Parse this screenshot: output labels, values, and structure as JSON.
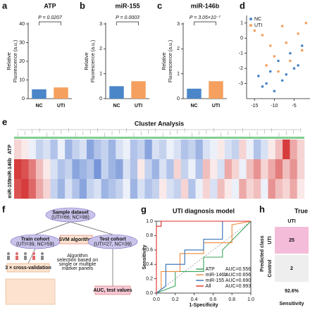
{
  "chart_data": [
    {
      "type": "bar",
      "panel": "a",
      "title": "ATP",
      "ylabel": [
        "Relative",
        "Fluorescence (a.u.)"
      ],
      "pvalue": "P = 0.0207",
      "categories": [
        "NC",
        "UTI"
      ],
      "values": [
        5,
        6
      ],
      "colors": [
        "#4a86c8",
        "#f5a05f"
      ],
      "ylim": [
        0,
        40
      ],
      "yticks": [
        0,
        10,
        20,
        30,
        40
      ]
    },
    {
      "type": "bar",
      "panel": "b",
      "title": "miR-155",
      "ylabel": [
        "Relative",
        "Fluorescence (a.u.)"
      ],
      "pvalue": "P = 0.0003",
      "categories": [
        "NC",
        "UTI"
      ],
      "values": [
        0.5,
        0.7
      ],
      "colors": [
        "#4a86c8",
        "#f5a05f"
      ],
      "ylim": [
        0,
        3
      ],
      "yticks": [
        0,
        1,
        2,
        3
      ]
    },
    {
      "type": "bar",
      "panel": "c",
      "title": "miR-146b",
      "ylabel": [
        "Relative",
        "Fluorescence (a.u.)"
      ],
      "pvalue": "P = 3.05×10⁻⁷",
      "categories": [
        "NC",
        "UTI"
      ],
      "values": [
        0.4,
        0.7
      ],
      "colors": [
        "#4a86c8",
        "#f5a05f"
      ],
      "ylim": [
        0,
        3
      ],
      "yticks": [
        0,
        1,
        2,
        3
      ]
    },
    {
      "type": "scatter",
      "panel": "d",
      "series": [
        {
          "name": "NC",
          "color": "#4a86c8",
          "x": [
            -14,
            -12,
            -11,
            -9,
            -8,
            -6,
            -5,
            -4,
            -3,
            -13,
            -7,
            -10
          ],
          "values": [
            -2.5,
            -3,
            -2.2,
            -1.5,
            -2.8,
            -1,
            -2,
            -1.8,
            -0.5,
            -3.2,
            -2.4,
            -3.5
          ]
        },
        {
          "name": "UTI",
          "color": "#f5a05f",
          "x": [
            -15,
            -13,
            -11,
            -10,
            -8,
            -7,
            -6,
            -4,
            -3,
            -2,
            -12,
            -9
          ],
          "values": [
            0.5,
            0.2,
            -0.5,
            -1.2,
            0.8,
            -0.3,
            -1.5,
            0.3,
            -0.8,
            1,
            -1.8,
            -2.2
          ]
        }
      ],
      "xlim": [
        -17,
        -1
      ],
      "xticks": [
        -15,
        -10,
        -5
      ],
      "ylim": [
        -4,
        1.5
      ],
      "yticks": [
        1,
        0,
        -1,
        -2,
        -3
      ]
    },
    {
      "type": "heatmap",
      "panel": "e",
      "title": "Cluster Analysis",
      "series": [
        {
          "name": "ATP",
          "values": [
            0.2,
            0.1,
            -0.1,
            -0.3,
            -0.2,
            -0.4,
            -0.1,
            -0.5,
            -0.3,
            -0.2,
            -0.6,
            -0.4,
            -0.3,
            -0.5,
            -0.2,
            -0.1,
            -0.4,
            -0.3,
            -0.6,
            -0.2,
            -0.3,
            -0.1,
            -0.2,
            -0.4,
            -0.3,
            -0.5,
            -0.2,
            -0.1,
            0.1,
            -0.2,
            -0.3,
            0.2,
            -0.1,
            -0.4,
            -0.2,
            0.1,
            0.3,
            0.9,
            0.4,
            0.2
          ]
        },
        {
          "name": "miR-146b",
          "values": [
            0.9,
            0.8,
            0.6,
            0.3,
            0.1,
            -0.2,
            -0.4,
            -0.3,
            -0.6,
            -0.5,
            -0.4,
            -0.7,
            -0.3,
            -0.5,
            -0.6,
            -0.2,
            -0.4,
            0.1,
            -0.3,
            -0.5,
            -0.2,
            -0.4,
            0.2,
            -0.3,
            -0.1,
            -0.4,
            0.3,
            0.1,
            -0.2,
            0.4,
            0.2,
            -0.1,
            0.3,
            0.5,
            0.2,
            0.4,
            0.6,
            0.3,
            0.5,
            0.2
          ]
        },
        {
          "name": "miR-155",
          "values": [
            0.8,
            0.9,
            0.7,
            0.4,
            0.2,
            -0.3,
            -0.5,
            -0.2,
            -0.4,
            -0.6,
            -0.3,
            -0.2,
            -0.5,
            -0.4,
            -0.3,
            -0.1,
            -0.5,
            -0.2,
            -0.4,
            -0.3,
            0.1,
            -0.2,
            -0.3,
            0.2,
            -0.4,
            -0.1,
            0.2,
            -0.2,
            0.3,
            0.1,
            -0.1,
            0.4,
            0.2,
            0.3,
            -0.1,
            0.5,
            0.3,
            0.2,
            0.4,
            0.1
          ]
        }
      ]
    },
    {
      "type": "line",
      "panel": "g",
      "title": "UTI diagnosis model",
      "xlabel": "1-Specificity",
      "ylabel": "Sensitivity",
      "series": [
        {
          "name": "ATP",
          "auc_text": "AUC=0.556",
          "color": "#3aa35a",
          "x": [
            0,
            0.2,
            0.2,
            0.5,
            0.5,
            0.7,
            0.7,
            1
          ],
          "values": [
            0,
            0.1,
            0.3,
            0.3,
            0.5,
            0.5,
            0.6,
            1
          ]
        },
        {
          "name": "miR-146b",
          "auc_text": "AUC=0.656",
          "color": "#f08a3c",
          "x": [
            0,
            0.05,
            0.05,
            0.25,
            0.25,
            0.5,
            0.5,
            0.8,
            0.8,
            1
          ],
          "values": [
            0,
            0.05,
            0.3,
            0.3,
            0.55,
            0.55,
            0.7,
            0.7,
            0.95,
            1
          ]
        },
        {
          "name": "miR-155",
          "auc_text": "AUC=0.690",
          "color": "#2f6fb5",
          "x": [
            0,
            0.1,
            0.1,
            0.3,
            0.3,
            0.5,
            0.5,
            0.7,
            0.7,
            1
          ],
          "values": [
            0,
            0.1,
            0.4,
            0.4,
            0.6,
            0.6,
            0.75,
            0.75,
            1,
            1
          ]
        },
        {
          "name": "All",
          "auc_text": "AUC=0.993",
          "color": "#e02a2a",
          "x": [
            0,
            0,
            0.05,
            0.05,
            1
          ],
          "values": [
            0,
            0.93,
            0.93,
            1,
            1
          ]
        }
      ],
      "xlim": [
        0,
        1
      ],
      "ylim": [
        0,
        1
      ],
      "xticks": [
        {
          "value": 0,
          "label": "0.0"
        },
        0.2,
        0.4,
        0.6,
        0.8,
        {
          "value": 1,
          "label": "1.0"
        }
      ],
      "yticks": [
        {
          "value": 0,
          "label": "0.0"
        },
        0.2,
        0.4,
        0.6,
        0.8,
        {
          "value": 1,
          "label": "1.0"
        }
      ]
    },
    {
      "type": "confusion",
      "panel": "h",
      "title": "True c",
      "ylabel": "Predicted class",
      "col_labels": [
        "UTI"
      ],
      "row_labels": [
        "UTI",
        "Control"
      ],
      "values": [
        [
          25
        ],
        [
          2
        ]
      ],
      "colors": [
        "#f4bcd9",
        "#eeeeee"
      ],
      "summary": {
        "values": [
          92.6
        ],
        "value_labels": [
          "92.6%"
        ],
        "label": "Sensitivity"
      }
    }
  ],
  "flowchart": {
    "panel": "f",
    "nodes": [
      {
        "lines": [
          "Sample dataset",
          "(UTI=66; NC=98)"
        ]
      },
      {
        "lines": [
          "Train cohort",
          "(UTI=39, NC=59)"
        ]
      },
      {
        "lines": [
          "SVM algorithm"
        ]
      },
      {
        "lines": [
          "Test cohort",
          "(UTI=27, NC=39)"
        ]
      },
      {
        "lines": [
          "3 × cross-validation"
        ]
      },
      {
        "lines": [
          "Algorithm",
          "selection based on",
          "single or multiple",
          "marker panels"
        ]
      },
      {
        "lines": [
          "AUC, test values"
        ]
      }
    ]
  }
}
